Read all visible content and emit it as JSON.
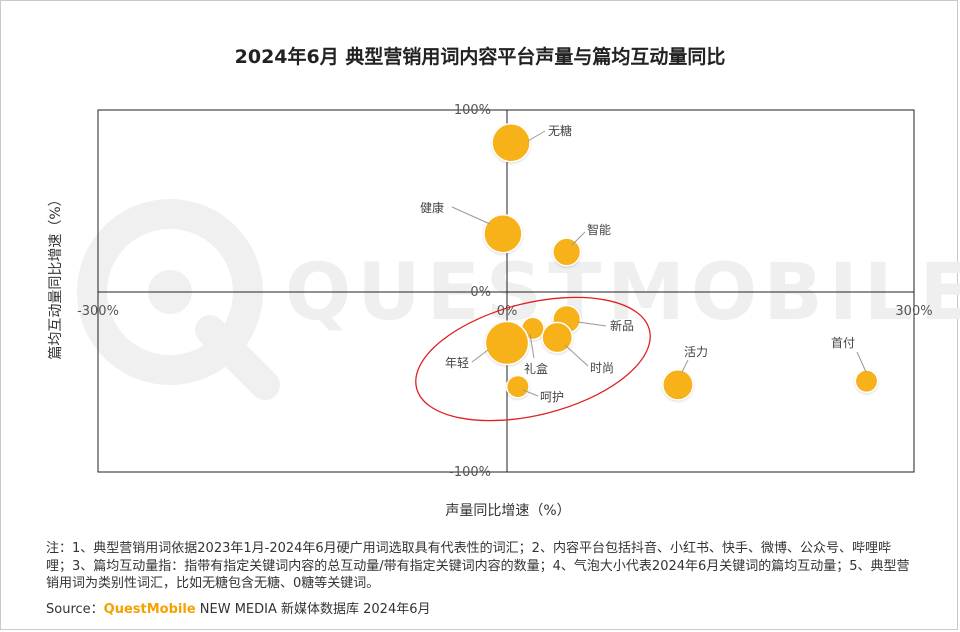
{
  "title": "2024年6月 典型营销用词内容平台声量与篇均互动量同比",
  "chart_data": {
    "type": "scatter",
    "title": "2024年6月 典型营销用词内容平台声量与篇均互动量同比",
    "xlabel": "声量同比增速（%）",
    "ylabel": "篇均互动量同比增速（%）",
    "xlim": [
      -300,
      300
    ],
    "ylim": [
      -100,
      100
    ],
    "x_ticks": [
      "-300%",
      "0%",
      "300%"
    ],
    "y_ticks": [
      "100%",
      "0%",
      "-100%"
    ],
    "bubble_color": "#F7B21A",
    "highlight_color": "#E02020",
    "points": [
      {
        "label": "无糖",
        "x": 3,
        "y": 82,
        "size": 5
      },
      {
        "label": "健康",
        "x": -3,
        "y": 32,
        "size": 5
      },
      {
        "label": "智能",
        "x": 44,
        "y": 22,
        "size": 3
      },
      {
        "label": "新品",
        "x": 44,
        "y": -15,
        "size": 3
      },
      {
        "label": "礼盒",
        "x": 19,
        "y": -20,
        "size": 2
      },
      {
        "label": "时尚",
        "x": 37,
        "y": -25,
        "size": 3.5
      },
      {
        "label": "年轻",
        "x": 0,
        "y": -28,
        "size": 6
      },
      {
        "label": "呵护",
        "x": 8,
        "y": -52,
        "size": 2
      },
      {
        "label": "活力",
        "x": 126,
        "y": -51,
        "size": 3.5
      },
      {
        "label": "首付",
        "x": 265,
        "y": -49,
        "size": 2
      }
    ]
  },
  "watermark": "QUESTMOBILE",
  "note": "注：1、典型营销用词依据2023年1月-2024年6月硬广用词选取具有代表性的词汇；2、内容平台包括抖音、小红书、快手、微博、公众号、哔哩哔哩；3、篇均互动量指：指带有指定关键词内容的总互动量/带有指定关键词内容的数量；4、气泡大小代表2024年6月关键词的篇均互动量；5、典型营销用词为类别性词汇，比如无糖包含无糖、0糖等关键词。",
  "source": {
    "prefix": "Source：",
    "brand": "QuestMobile",
    "suffix": " NEW MEDIA 新媒体数据库 2024年6月"
  }
}
